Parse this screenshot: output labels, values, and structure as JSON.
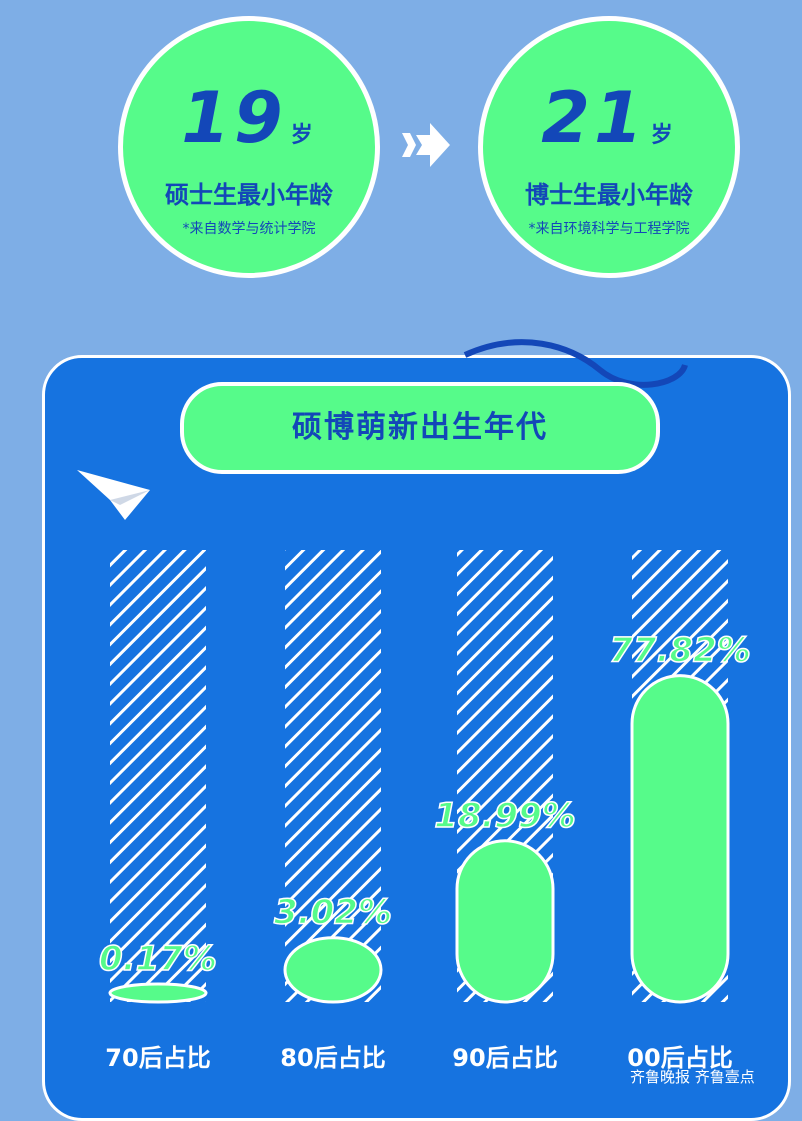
{
  "top": {
    "left": {
      "age": "19",
      "unit": "岁",
      "label": "硕士生最小年龄",
      "note": "*来自数学与统计学院"
    },
    "right": {
      "age": "21",
      "unit": "岁",
      "label": "博士生最小年龄",
      "note": "*来自环境科学与工程学院"
    }
  },
  "chart_data": {
    "type": "bar",
    "title": "硕博萌新出生年代",
    "categories": [
      "70后占比",
      "80后占比",
      "90后占比",
      "00后占比"
    ],
    "values": [
      0.17,
      3.02,
      18.99,
      77.82
    ],
    "data_labels": [
      "0.17%",
      "3.02%",
      "18.99%",
      "77.82%"
    ],
    "colors": {
      "bar": "#56fb8a",
      "panel": "#1673e0",
      "text": "#1347b8"
    }
  },
  "watermark": "齐鲁晚报 齐鲁壹点"
}
